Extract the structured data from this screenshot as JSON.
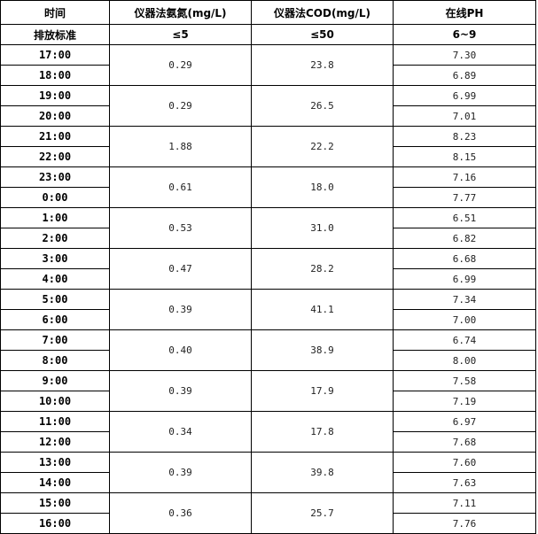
{
  "headers": [
    "时间",
    "仪器法氨氮(mg/L)",
    "仪器法COD(mg/L)",
    "在线PH"
  ],
  "standard": {
    "label": "排放标准",
    "ammonia": "≤5",
    "cod": "≤50",
    "ph": "6~9"
  },
  "groups": [
    {
      "times": [
        "17:00",
        "18:00"
      ],
      "ammonia": "0.29",
      "cod": "23.8",
      "ph": [
        "7.30",
        "6.89"
      ]
    },
    {
      "times": [
        "19:00",
        "20:00"
      ],
      "ammonia": "0.29",
      "cod": "26.5",
      "ph": [
        "6.99",
        "7.01"
      ]
    },
    {
      "times": [
        "21:00",
        "22:00"
      ],
      "ammonia": "1.88",
      "cod": "22.2",
      "ph": [
        "8.23",
        "8.15"
      ]
    },
    {
      "times": [
        "23:00",
        "0:00"
      ],
      "ammonia": "0.61",
      "cod": "18.0",
      "ph": [
        "7.16",
        "7.77"
      ]
    },
    {
      "times": [
        "1:00",
        "2:00"
      ],
      "ammonia": "0.53",
      "cod": "31.0",
      "ph": [
        "6.51",
        "6.82"
      ]
    },
    {
      "times": [
        "3:00",
        "4:00"
      ],
      "ammonia": "0.47",
      "cod": "28.2",
      "ph": [
        "6.68",
        "6.99"
      ]
    },
    {
      "times": [
        "5:00",
        "6:00"
      ],
      "ammonia": "0.39",
      "cod": "41.1",
      "ph": [
        "7.34",
        "7.00"
      ]
    },
    {
      "times": [
        "7:00",
        "8:00"
      ],
      "ammonia": "0.40",
      "cod": "38.9",
      "ph": [
        "6.74",
        "8.00"
      ]
    },
    {
      "times": [
        "9:00",
        "10:00"
      ],
      "ammonia": "0.39",
      "cod": "17.9",
      "ph": [
        "7.58",
        "7.19"
      ]
    },
    {
      "times": [
        "11:00",
        "12:00"
      ],
      "ammonia": "0.34",
      "cod": "17.8",
      "ph": [
        "6.97",
        "7.68"
      ]
    },
    {
      "times": [
        "13:00",
        "14:00"
      ],
      "ammonia": "0.39",
      "cod": "39.8",
      "ph": [
        "7.60",
        "7.63"
      ]
    },
    {
      "times": [
        "15:00",
        "16:00"
      ],
      "ammonia": "0.36",
      "cod": "25.7",
      "ph": [
        "7.11",
        "7.76"
      ]
    }
  ]
}
